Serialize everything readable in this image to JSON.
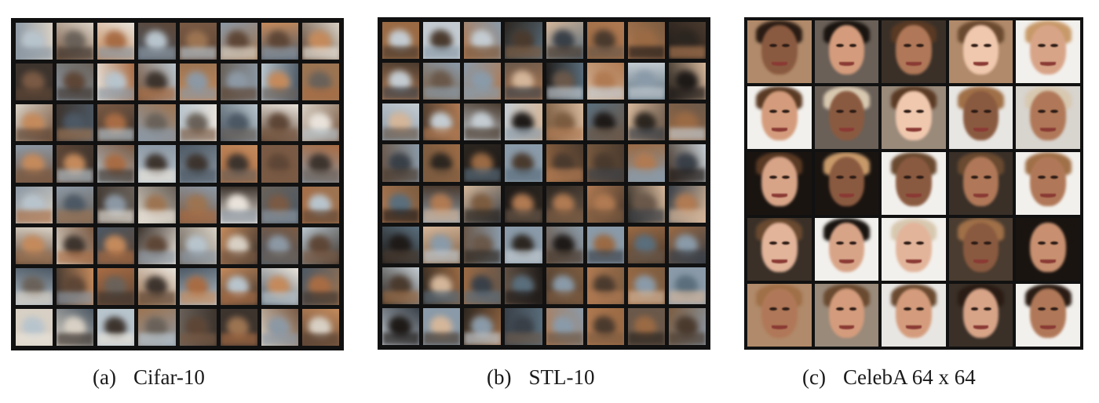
{
  "panels": [
    {
      "tag": "(a)",
      "name": "Cifar-10",
      "grid": [
        8,
        8
      ],
      "palette": [
        "#7a5a44",
        "#b8c4cc",
        "#5e4636",
        "#c48a5c",
        "#3d342e",
        "#8c98a4",
        "#d8d0c4",
        "#a86c44",
        "#4c5864",
        "#e8e2da",
        "#6a625a",
        "#9c7452"
      ]
    },
    {
      "tag": "(b)",
      "name": "STL-10",
      "grid": [
        8,
        8
      ],
      "palette": [
        "#4a3a2e",
        "#8a9aa8",
        "#2c2620",
        "#b07a52",
        "#6a584a",
        "#c4ccd2",
        "#3a4048",
        "#9a6a44",
        "#1e1a18",
        "#d4b69a",
        "#5a6e7c",
        "#7c5c40"
      ]
    },
    {
      "tag": "(c)",
      "name": "CelebA 64 x 64",
      "grid": [
        5,
        5
      ],
      "backgrounds": [
        "#e8e6e2",
        "#3a3028",
        "#1a1410",
        "#d8d4ce",
        "#b08a6a",
        "#2a2420",
        "#6a6058",
        "#f2f0ec",
        "#4a3c30",
        "#9a8a7a"
      ],
      "skins": [
        "#d8a488",
        "#c89070",
        "#e2b49a",
        "#b07858",
        "#8a5a40",
        "#f0c8ae",
        "#d49c7c"
      ],
      "hairs": [
        "#2a1c14",
        "#5a3a24",
        "#a07048",
        "#1a1410",
        "#c89a6a",
        "#6a4a30",
        "#d8c8b0"
      ]
    }
  ]
}
